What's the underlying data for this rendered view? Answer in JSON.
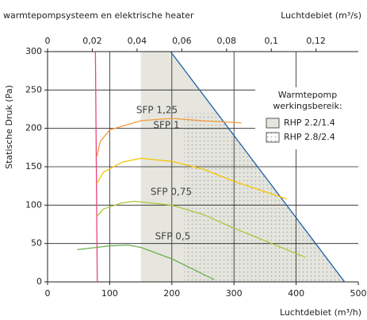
{
  "chart_data": {
    "type": "line",
    "title": "warmtepompsysteem en elektrische heater",
    "xlabel": "Luchtdebiet (m³/h)",
    "ylabel": "Statische Druk (Pa)",
    "x2label": "Luchtdebiet (m³/s)",
    "xlim": [
      0,
      500
    ],
    "xticks": [
      0,
      100,
      200,
      300,
      400,
      500
    ],
    "ylim": [
      0,
      300
    ],
    "yticks": [
      0,
      50,
      100,
      150,
      200,
      250,
      300
    ],
    "x2lim": [
      0,
      0.13889
    ],
    "x2ticks": [
      0,
      {
        "value": 0.02,
        "label": "0,02"
      },
      {
        "value": 0.04,
        "label": "0,04"
      },
      {
        "value": 0.06,
        "label": "0,06"
      },
      {
        "value": 0.08,
        "label": "0,08"
      },
      {
        "value": 0.1,
        "label": "0,1"
      },
      {
        "value": 0.12,
        "label": "0,12"
      }
    ],
    "grid": true,
    "legend_title": [
      "Warmtepomp",
      "werkingsbereik:"
    ],
    "areas": [
      {
        "name": "RHP 2.2/1.4",
        "color": "#e6e6df",
        "x": [
          150,
          150,
          198,
          478
        ],
        "values": [
          0,
          300,
          300,
          0
        ]
      },
      {
        "name": "RHP 2.8/2.4",
        "color": "#c2c2bd",
        "pattern": "dots",
        "x": [
          220,
          220,
          273,
          478
        ],
        "values": [
          0,
          220,
          220,
          0
        ]
      }
    ],
    "series": [
      {
        "color": "#e8457a",
        "x": [
          77,
          80
        ],
        "values": [
          300,
          0
        ]
      },
      {
        "color": "#1f5fa8",
        "x": [
          198,
          478
        ],
        "values": [
          300,
          0
        ]
      },
      {
        "name": "SFP 1,25",
        "color": "#f39a3a",
        "x": [
          79,
          85,
          100,
          150,
          200,
          250,
          312
        ],
        "values": [
          163,
          183,
          198,
          210,
          213,
          210,
          207
        ]
      },
      {
        "name": "SFP 1",
        "color": "#f5c400",
        "x": [
          79,
          90,
          120,
          150,
          200,
          250,
          300,
          385
        ],
        "values": [
          128,
          143,
          156,
          161,
          157,
          147,
          131,
          108
        ]
      },
      {
        "name": "SFP 0,75",
        "color": "#a8c83a",
        "x": [
          79,
          90,
          120,
          140,
          200,
          250,
          300,
          415
        ],
        "values": [
          85,
          95,
          103,
          105,
          100,
          88,
          70,
          32
        ]
      },
      {
        "name": "SFP 0,5",
        "color": "#6ab04c",
        "x": [
          48,
          80,
          100,
          130,
          150,
          200,
          268
        ],
        "values": [
          42,
          45,
          47,
          48,
          45,
          30,
          3
        ]
      }
    ]
  }
}
